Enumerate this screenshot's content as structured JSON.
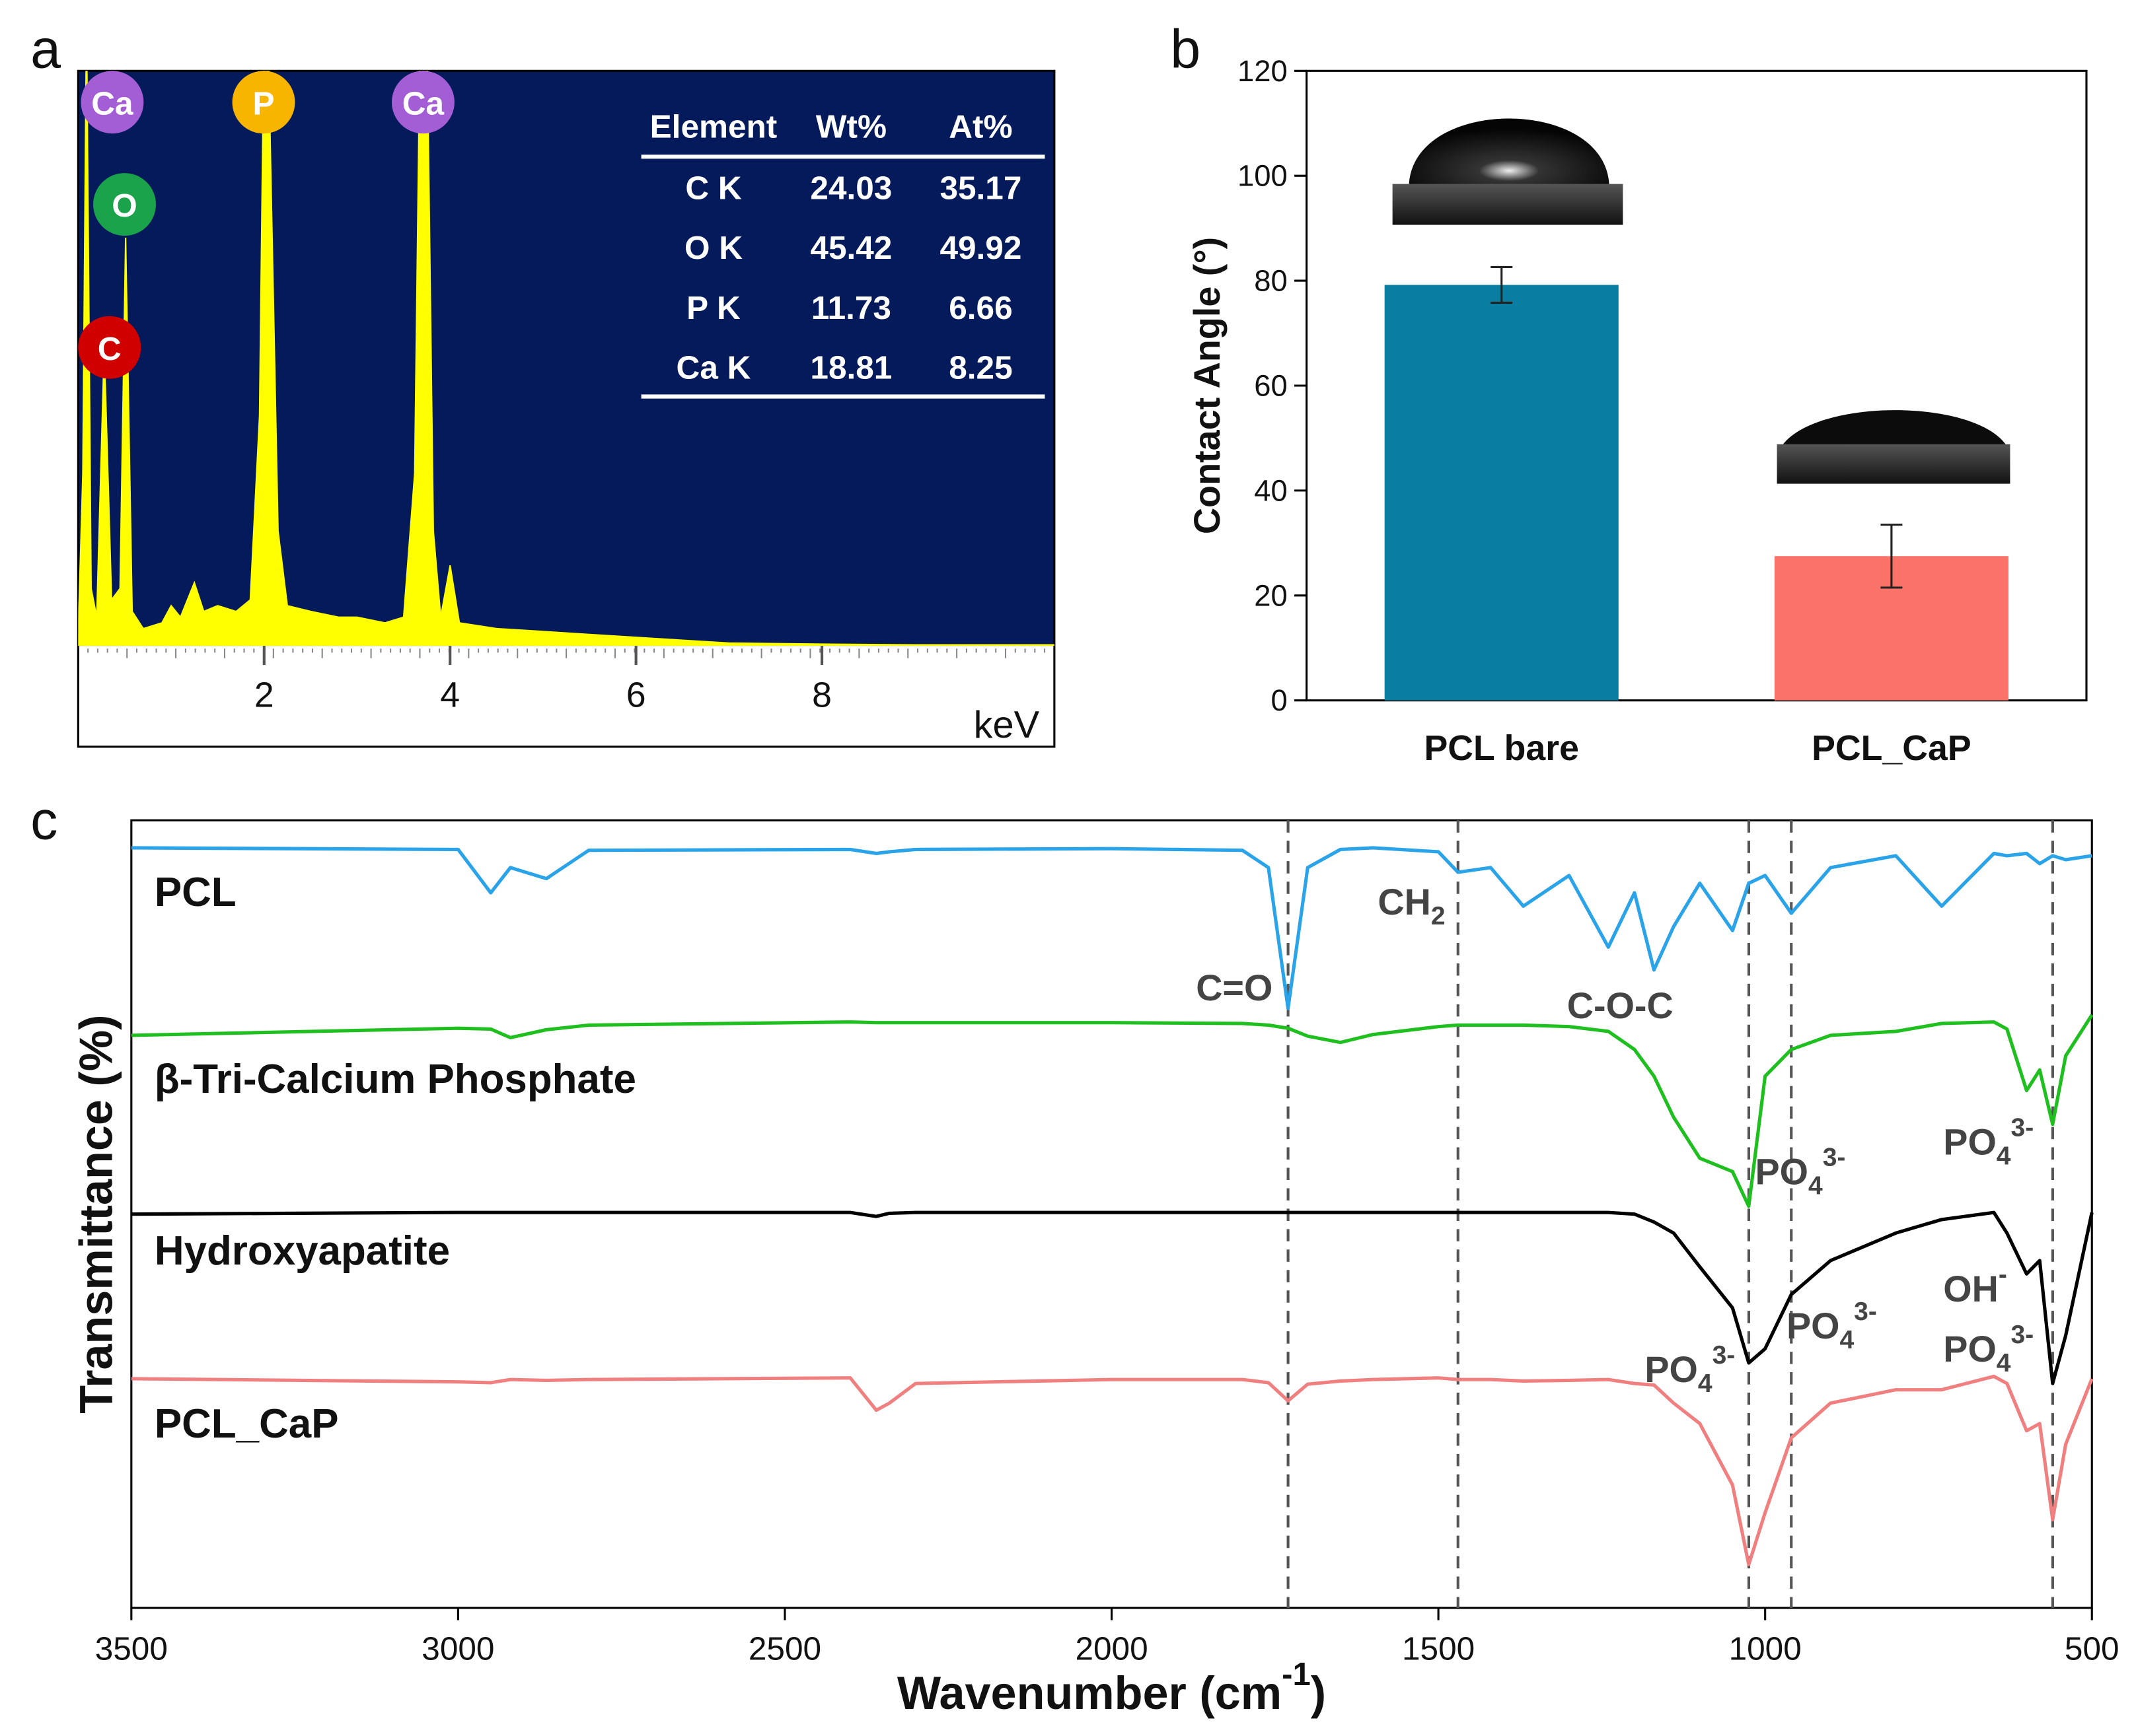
{
  "chart_data": [
    {
      "type": "area",
      "panel": "a",
      "xlabel": "keV",
      "xlim": [
        0,
        10.5
      ],
      "xticks": [
        2,
        4,
        6,
        8
      ],
      "ylim": [
        0,
        100
      ],
      "color": "#ffff00",
      "background": "#041a5a",
      "x": [
        0,
        0.05,
        0.09,
        0.14,
        0.2,
        0.28,
        0.36,
        0.45,
        0.51,
        0.58,
        0.7,
        0.9,
        1.0,
        1.1,
        1.25,
        1.35,
        1.5,
        1.7,
        1.85,
        1.95,
        2.0,
        2.05,
        2.15,
        2.25,
        2.5,
        2.8,
        3.0,
        3.3,
        3.5,
        3.62,
        3.68,
        3.75,
        3.82,
        3.9,
        4.0,
        4.1,
        4.5,
        5,
        5.5,
        6,
        6.5,
        7,
        8,
        9,
        10.5
      ],
      "values": [
        2,
        30,
        110,
        10,
        5,
        52,
        8,
        10,
        71,
        6,
        3,
        4,
        7,
        5,
        11,
        6,
        7,
        6,
        8,
        40,
        110,
        100,
        20,
        7,
        6,
        5,
        5,
        4,
        5,
        30,
        110,
        110,
        20,
        5,
        14,
        4,
        3,
        2.5,
        2,
        1.5,
        1,
        0.5,
        0.3,
        0.2,
        0.2
      ],
      "annotations": [
        {
          "text": "Ca",
          "color": "#a35ed6"
        },
        {
          "text": "O",
          "color": "#1aa34a"
        },
        {
          "text": "C",
          "color": "#d10000"
        },
        {
          "text": "P",
          "color": "#f7b500"
        },
        {
          "text": "Ca",
          "color": "#a35ed6"
        }
      ],
      "table": {
        "header": [
          "Element",
          "Wt%",
          "At%"
        ],
        "rows": [
          [
            "C K",
            24.03,
            35.17
          ],
          [
            "O K",
            45.42,
            49.92
          ],
          [
            "P K",
            11.73,
            6.66
          ],
          [
            "Ca K",
            18.81,
            8.25
          ]
        ]
      }
    },
    {
      "type": "bar",
      "panel": "b",
      "ylabel": "Contact Angle (°)",
      "categories": [
        "PCL bare",
        "PCL_CaP"
      ],
      "values": [
        79.2,
        27.5
      ],
      "errors": [
        3.4,
        6.0
      ],
      "colors": [
        "#0a7ea0",
        "#fa7268"
      ],
      "ylim": [
        0,
        120
      ],
      "yticks": [
        0,
        20,
        40,
        60,
        80,
        100,
        120
      ]
    },
    {
      "type": "line",
      "panel": "c",
      "ylabel": "Transmittance (%)",
      "xlabel": {
        "text": "Wavenumber (cm",
        "sup": "-1",
        "tail": ")"
      },
      "xlim": [
        3500,
        500
      ],
      "xticks": [
        3500,
        3000,
        2500,
        2000,
        1500,
        1000,
        500
      ],
      "ylim": [
        0,
        100
      ],
      "x": [
        3500,
        3000,
        2950,
        2920,
        2865,
        2800,
        2400,
        2360,
        2340,
        2300,
        2000,
        1800,
        1760,
        1730,
        1700,
        1650,
        1600,
        1500,
        1470,
        1420,
        1370,
        1300,
        1240,
        1200,
        1170,
        1140,
        1100,
        1050,
        1025,
        1000,
        960,
        900,
        800,
        730,
        650,
        630,
        600,
        580,
        560,
        540,
        500
      ],
      "series": [
        {
          "name": "PCL",
          "color": "#2aa3e8",
          "values": [
            96.5,
            96.3,
            90.8,
            94,
            92.6,
            96.2,
            96.3,
            95.8,
            96,
            96.3,
            96.4,
            96.2,
            94,
            76.1,
            94,
            96.3,
            96.5,
            96,
            93.4,
            94,
            89.1,
            93,
            83.9,
            90.8,
            81.0,
            86.5,
            92,
            86,
            92,
            93,
            88.2,
            94,
            95.5,
            89.1,
            95.8,
            95.5,
            95.8,
            94.5,
            95.5,
            95,
            95.5
          ]
        },
        {
          "name": "β-Tri-Calcium Phosphate",
          "color": "#1fbf1f",
          "values": [
            72.7,
            73.6,
            73.5,
            72.4,
            73.4,
            74,
            74.4,
            74.3,
            74.3,
            74.3,
            74.3,
            74.2,
            74,
            73.6,
            72.6,
            71.8,
            72.8,
            73.8,
            74,
            74,
            74,
            73.8,
            73.2,
            70.9,
            67.5,
            62.3,
            57.1,
            55.4,
            51.0,
            67.5,
            70.9,
            72.7,
            73.2,
            74.2,
            74.4,
            73.5,
            65.7,
            68.3,
            61.4,
            70.1,
            75.3
          ]
        },
        {
          "name": "Hydroxyapatite",
          "color": "#000000",
          "values": [
            50.0,
            50.2,
            50.2,
            50.2,
            50.2,
            50.2,
            50.2,
            49.7,
            50.1,
            50.2,
            50.2,
            50.2,
            50.2,
            50.2,
            50.2,
            50.2,
            50.2,
            50.2,
            50.2,
            50.2,
            50.2,
            50.2,
            50.2,
            50.0,
            49,
            47.6,
            43.3,
            38.1,
            31.1,
            32.9,
            39.8,
            44.1,
            47.6,
            49.3,
            50.2,
            47.6,
            42.4,
            44.1,
            28.5,
            34.6,
            50.2
          ]
        },
        {
          "name": "PCL_CaP",
          "color": "#f08080",
          "values": [
            29.1,
            28.7,
            28.6,
            29,
            28.9,
            29,
            29.2,
            25.1,
            26.0,
            28.5,
            29,
            29,
            28.6,
            26.3,
            28.4,
            28.8,
            29,
            29.2,
            29,
            29,
            28.8,
            28.9,
            29,
            28.5,
            28.3,
            26.0,
            23.4,
            15.6,
            5.5,
            12.1,
            21.6,
            26.0,
            27.7,
            27.7,
            29.4,
            28.5,
            22.5,
            23.4,
            11.2,
            20.8,
            29.1
          ]
        }
      ],
      "vlines": [
        1730,
        1470,
        1025,
        960,
        560
      ],
      "annotations": [
        {
          "text": "C=O"
        },
        {
          "text": "CH",
          "sub": "2"
        },
        {
          "text": "C-O-C"
        },
        {
          "text": "PO",
          "sub": "4",
          "sup": "3-"
        },
        {
          "text": "PO",
          "sub": "4",
          "sup": "3-"
        },
        {
          "text": "PO",
          "sub": "4",
          "sup": "3-"
        },
        {
          "text": "PO",
          "sub": "4",
          "sup": "3-"
        },
        {
          "text": "OH",
          "sup": "-"
        },
        {
          "text": "PO",
          "sub": "4",
          "sup": "3-"
        }
      ]
    }
  ]
}
